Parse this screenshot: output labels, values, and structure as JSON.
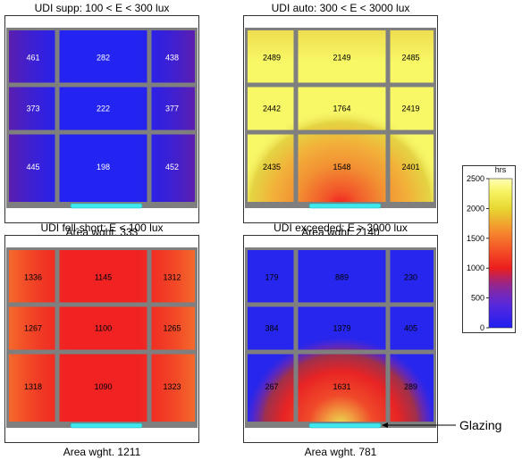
{
  "chart_data": [
    {
      "type": "heatmap",
      "title": "UDI supp: 100 < E < 300 lux",
      "footer": "Area wght. 333",
      "grid": [
        [
          461,
          282,
          438
        ],
        [
          373,
          222,
          377
        ],
        [
          445,
          198,
          452
        ]
      ],
      "value_color": "#ffffff",
      "style": "supp"
    },
    {
      "type": "heatmap",
      "title": "UDI auto: 300 < E < 3000 lux",
      "footer": "Area wght. 2140",
      "grid": [
        [
          2489,
          2149,
          2485
        ],
        [
          2442,
          1764,
          2419
        ],
        [
          2435,
          1548,
          2401
        ]
      ],
      "value_color": "#000000",
      "style": "auto"
    },
    {
      "type": "heatmap",
      "title": "UDI fell-short: E < 100 lux",
      "footer": "Area wght. 1211",
      "grid": [
        [
          1336,
          1145,
          1312
        ],
        [
          1267,
          1100,
          1265
        ],
        [
          1318,
          1090,
          1323
        ]
      ],
      "value_color": "#000000",
      "style": "short"
    },
    {
      "type": "heatmap",
      "title": "UDI exceeded: E > 3000 lux",
      "footer": "Area wght. 781",
      "grid": [
        [
          179,
          889,
          230
        ],
        [
          384,
          1379,
          405
        ],
        [
          267,
          1631,
          289
        ]
      ],
      "value_color": "#000000",
      "style": "exceeded",
      "annotation": "Glazing"
    }
  ],
  "legend": {
    "title": "hrs",
    "ticks": [
      "2500",
      "2000",
      "1500",
      "1000",
      "500",
      "0"
    ]
  },
  "colors": {
    "panel_gray": "#7f7f7f",
    "glazing": "#3fe8ee"
  }
}
